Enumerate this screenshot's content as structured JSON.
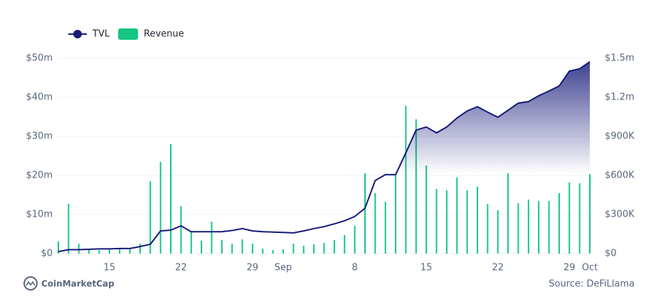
{
  "chart_data": {
    "type": "combo",
    "categories": [
      null,
      null,
      null,
      null,
      null,
      "15",
      null,
      null,
      null,
      null,
      null,
      null,
      "22",
      null,
      null,
      null,
      null,
      null,
      null,
      "29",
      null,
      null,
      "Sep",
      null,
      null,
      null,
      null,
      null,
      null,
      "8",
      null,
      null,
      null,
      null,
      null,
      null,
      "15",
      null,
      null,
      null,
      null,
      null,
      null,
      "22",
      null,
      null,
      null,
      null,
      null,
      null,
      "29",
      null,
      "Oct"
    ],
    "series": [
      {
        "name": "TVL",
        "type": "line",
        "color": "#16197a",
        "axis": "y",
        "values": [
          0.5,
          1.0,
          1.0,
          1.1,
          1.2,
          1.2,
          1.3,
          1.3,
          1.8,
          2.4,
          5.8,
          6.0,
          7.1,
          5.6,
          5.6,
          5.6,
          5.6,
          5.9,
          6.4,
          5.8,
          5.6,
          5.5,
          5.4,
          5.3,
          5.8,
          6.4,
          6.9,
          7.6,
          8.4,
          9.5,
          11.6,
          18.7,
          20.2,
          20.2,
          25.8,
          31.6,
          32.4,
          30.9,
          32.4,
          34.7,
          36.5,
          37.6,
          36.2,
          34.9,
          36.7,
          38.5,
          38.9,
          40.4,
          41.6,
          42.9,
          46.7,
          47.3,
          49.1
        ]
      },
      {
        "name": "Revenue",
        "type": "bar",
        "color": "#16c784",
        "axis": "y2",
        "values": [
          93000,
          382000,
          76000,
          27000,
          27000,
          33000,
          38000,
          44000,
          76000,
          556000,
          704000,
          840000,
          365000,
          169000,
          98000,
          245000,
          104000,
          76000,
          109000,
          76000,
          38000,
          27000,
          33000,
          76000,
          60000,
          71000,
          82000,
          104000,
          142000,
          213000,
          616000,
          464000,
          398000,
          611000,
          1135000,
          1031000,
          676000,
          496000,
          485000,
          584000,
          485000,
          513000,
          382000,
          333000,
          616000,
          387000,
          415000,
          404000,
          404000,
          464000,
          545000,
          540000,
          611000
        ]
      }
    ],
    "ylim": [
      0,
      50
    ],
    "yticks": [
      {
        "value": 0,
        "label": "$0"
      },
      {
        "value": 10,
        "label": "$10m"
      },
      {
        "value": 20,
        "label": "$20m"
      },
      {
        "value": 30,
        "label": "$30m"
      },
      {
        "value": 40,
        "label": "$40m"
      },
      {
        "value": 50,
        "label": "$50m"
      }
    ],
    "y2lim": [
      0,
      1500000
    ],
    "y2ticks": [
      {
        "value": 0,
        "label": "$0"
      },
      {
        "value": 300000,
        "label": "$300K"
      },
      {
        "value": 600000,
        "label": "$600K"
      },
      {
        "value": 900000,
        "label": "$900K"
      },
      {
        "value": 1200000,
        "label": "$1.2m"
      },
      {
        "value": 1500000,
        "label": "$1.5m"
      }
    ],
    "grid": true,
    "brand": "CoinMarketCap",
    "source": "Source: DeFiLlama"
  }
}
